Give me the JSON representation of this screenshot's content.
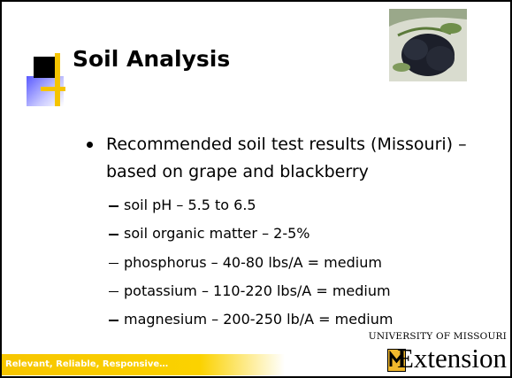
{
  "header": {
    "title": "Soil Analysis"
  },
  "body": {
    "bullet": "Recommended soil test results (Missouri) – based on grape and blackberry",
    "sub_bullets": [
      "soil pH – 5.5 to 6.5",
      "soil organic matter – 2-5%",
      "phosphorus – 40-80 lbs/A = medium",
      "potassium – 110-220 lbs/A = medium",
      "magnesium – 200-250 lb/A = medium"
    ]
  },
  "footer": {
    "tagline": "Relevant, Reliable, Responsive…"
  },
  "logo": {
    "university": "UNIVERSITY OF MISSOURI",
    "name": "Extension"
  }
}
